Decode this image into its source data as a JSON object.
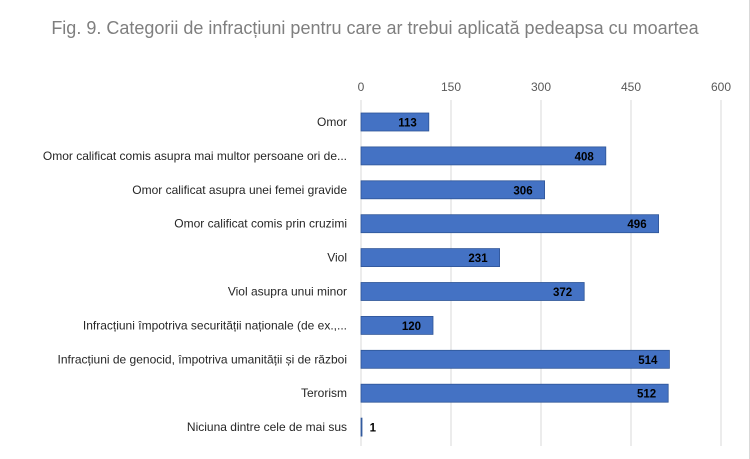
{
  "chart_data": {
    "type": "bar",
    "orientation": "horizontal",
    "title": "Fig. 9. Categorii de infracțiuni pentru care ar trebui aplicată pedeapsa cu moartea",
    "xlabel": "",
    "ylabel": "",
    "categories": [
      "Omor",
      "Omor calificat comis asupra mai multor persoane ori de...",
      "Omor calificat asupra unei femei gravide",
      "Omor calificat comis prin cruzimi",
      "Viol",
      "Viol asupra unui minor",
      "Infracțiuni împotriva securității naționale (de ex.,...",
      "Infracțiuni de genocid, împotriva umanității și de război",
      "Terorism",
      "Niciuna dintre cele de mai sus"
    ],
    "values": [
      113,
      408,
      306,
      496,
      231,
      372,
      120,
      514,
      512,
      1
    ],
    "xlim": [
      0,
      600
    ],
    "x_ticks": [
      0,
      150,
      300,
      450,
      600
    ],
    "x_axis_position": "top",
    "grid": true,
    "legend": "none",
    "data_labels": true,
    "colors": {
      "bar": "#4472c4",
      "bar_edge": "#2f5597",
      "grid": "#d9d9d9",
      "title": "#7f7f7f"
    }
  }
}
